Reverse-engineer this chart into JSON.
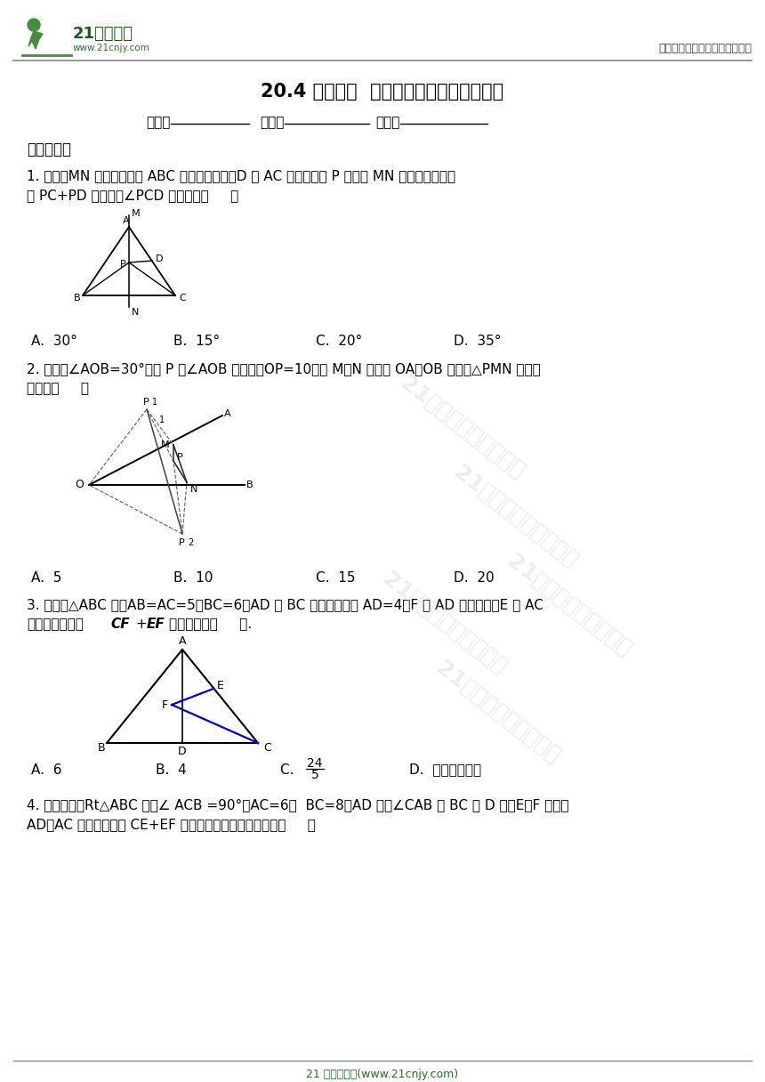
{
  "title": "20.4 课题学习  最短路径问题同步课时作业",
  "header_right": "中小学教育资源及组卷应用平台",
  "logo_text1": "21世纪教育",
  "logo_text2": "www.21cnjy.com",
  "name_label": "姓名：",
  "class_label": "班级：",
  "exam_label": "考号：",
  "section1": "一、选择题",
  "q1_text1": "1. 如图，MN 是等边三角形 ABC 的一条对称轴，D 为 AC 的中点，点 P 是直线 MN 上的一个动点，",
  "q1_text2": "当 PC+PD 最小时，∠PCD 的度数是（     ）",
  "q1_options": [
    "A.  30°",
    "B.  15°",
    "C.  20°",
    "D.  35°"
  ],
  "q2_text1": "2. 如图，∠AOB=30°，点 P 为∠AOB 内一点，OP=10，点 M、N 分别在 OA、OB 上，求△PMN 周长的",
  "q2_text2": "最小值（     ）",
  "q2_options": [
    "A.  5",
    "B.  10",
    "C.  15",
    "D.  20"
  ],
  "q3_text1": "3. 如图，△ABC 中，AB=AC=5，BC=6，AD 是 BC 边上的中线且 AD=4，F 是 AD 上的动点，E 是 AC",
  "q3_text2": "边上的动点，则CF + EF的最小值是（     ）.",
  "q3_options_A": "A.  6",
  "q3_options_B": "B.  4",
  "q3_options_C": "C.  ",
  "q3_options_D": "D.  不存在最小值",
  "q3_frac_num": "24",
  "q3_frac_den": "5",
  "q4_text1": "4. 如图所示，Rt△ABC 中，∠ ACB =90°，AC=6，  BC=8，AD 平分∠CAB 交 BC 于 D 点，E、F 分别是",
  "q4_text2": "AD、AC 上的动点，使 CE+EF 的和最小，则这个最小值为（     ）",
  "footer": "21 世纪教育网(www.21cnjy.com)",
  "bg_color": "#ffffff",
  "text_color": "#000000",
  "green_color": "#2e6b2e",
  "dark_green": "#1a5c1a",
  "gray_line": "#aaaaaa",
  "blue_color": "#0000bb"
}
